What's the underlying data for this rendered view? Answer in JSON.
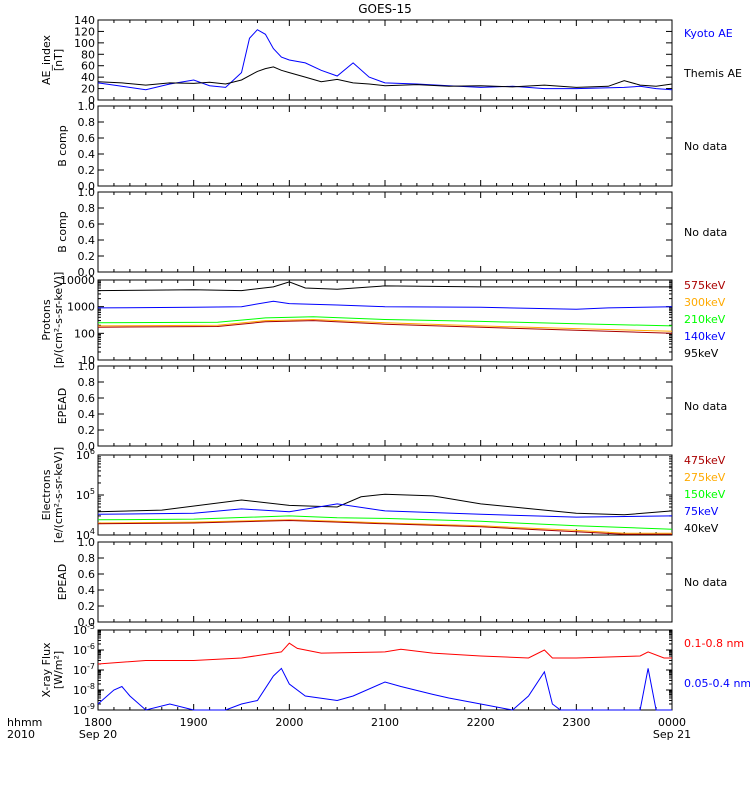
{
  "title": "GOES-15",
  "time_axis": {
    "corner_label_top": "hhmm",
    "corner_label_bottom": "2010",
    "tick_labels": [
      "1800",
      "1900",
      "2000",
      "2100",
      "2200",
      "2300",
      "0000"
    ],
    "date_labels": [
      {
        "at": "1800",
        "text": "Sep 20"
      },
      {
        "at": "0000",
        "text": "Sep 21"
      }
    ]
  },
  "colors": {
    "black": "#000000",
    "blue": "#0000ff",
    "red": "#ff0000",
    "orange": "#ffaa00",
    "green": "#00ff00",
    "darkred": "#aa0000"
  },
  "chart_data": [
    {
      "id": "ae",
      "type": "line",
      "ylabel": "AE_index\n[nT]",
      "yscale": "linear",
      "ylim": [
        0,
        140
      ],
      "yticks": [
        0,
        20,
        40,
        60,
        80,
        100,
        120,
        140
      ],
      "legend": [
        {
          "text": "Kyoto AE",
          "color": "#0000ff"
        },
        {
          "text": "Themis AE",
          "color": "#000000"
        }
      ],
      "series": [
        {
          "name": "Kyoto AE",
          "color": "#0000ff",
          "x": [
            "1800",
            "1815",
            "1830",
            "1845",
            "1900",
            "1910",
            "1920",
            "1930",
            "1935",
            "1940",
            "1945",
            "1950",
            "1955",
            "2000",
            "2010",
            "2020",
            "2030",
            "2040",
            "2050",
            "2100",
            "2120",
            "2140",
            "2200",
            "2220",
            "2240",
            "2300",
            "2330",
            "2340",
            "2350",
            "2400"
          ],
          "values": [
            30,
            24,
            18,
            28,
            35,
            25,
            22,
            48,
            108,
            123,
            115,
            90,
            75,
            70,
            65,
            52,
            42,
            65,
            40,
            30,
            28,
            25,
            22,
            24,
            20,
            20,
            22,
            24,
            20,
            18
          ]
        },
        {
          "name": "Themis AE",
          "color": "#000000",
          "x": [
            "1800",
            "1815",
            "1830",
            "1845",
            "1900",
            "1910",
            "1920",
            "1930",
            "1940",
            "1945",
            "1950",
            "1955",
            "2000",
            "2010",
            "2020",
            "2030",
            "2040",
            "2050",
            "2100",
            "2120",
            "2140",
            "2200",
            "2220",
            "2240",
            "2300",
            "2320",
            "2330",
            "2340",
            "2350",
            "2400"
          ],
          "values": [
            32,
            30,
            26,
            30,
            29,
            31,
            28,
            35,
            50,
            55,
            58,
            52,
            48,
            40,
            32,
            36,
            30,
            28,
            25,
            27,
            24,
            25,
            23,
            26,
            22,
            24,
            34,
            26,
            24,
            28
          ]
        }
      ]
    },
    {
      "id": "bcomp1",
      "type": "line",
      "ylabel": "B comp",
      "yscale": "linear",
      "ylim": [
        0,
        1
      ],
      "yticks": [
        0.0,
        0.2,
        0.4,
        0.6,
        0.8,
        1.0
      ],
      "tick_format": "1dp",
      "legend": [
        {
          "text": "No data",
          "color": "#000000"
        }
      ],
      "series": []
    },
    {
      "id": "bcomp2",
      "type": "line",
      "ylabel": "B comp",
      "yscale": "linear",
      "ylim": [
        0,
        1
      ],
      "yticks": [
        0.0,
        0.2,
        0.4,
        0.6,
        0.8,
        1.0
      ],
      "tick_format": "1dp",
      "legend": [
        {
          "text": "No data",
          "color": "#000000"
        }
      ],
      "series": []
    },
    {
      "id": "protons",
      "type": "line",
      "ylabel": "Protons\n[p/(cm²-s-sr-keV)]",
      "yscale": "log",
      "ylim": [
        10,
        10000
      ],
      "yticks": [
        10,
        100,
        1000,
        10000
      ],
      "tick_format": "plain",
      "legend": [
        {
          "text": "575keV",
          "color": "#aa0000"
        },
        {
          "text": "300keV",
          "color": "#ffaa00"
        },
        {
          "text": "210keV",
          "color": "#00ff00"
        },
        {
          "text": "140keV",
          "color": "#0000ff"
        },
        {
          "text": "95keV",
          "color": "#000000"
        }
      ],
      "series": [
        {
          "name": "95keV",
          "color": "#000000",
          "x": [
            "1800",
            "1900",
            "1930",
            "1950",
            "2000",
            "2010",
            "2030",
            "2100",
            "2200",
            "2300",
            "2400"
          ],
          "values": [
            4000,
            4300,
            4000,
            5500,
            8500,
            5000,
            4500,
            6000,
            5500,
            5500,
            5500
          ]
        },
        {
          "name": "140keV",
          "color": "#0000ff",
          "x": [
            "1800",
            "1900",
            "1930",
            "1950",
            "2000",
            "2030",
            "2100",
            "2200",
            "2300",
            "2320",
            "2400"
          ],
          "values": [
            900,
            950,
            1000,
            1600,
            1300,
            1150,
            1000,
            950,
            800,
            900,
            1000
          ]
        },
        {
          "name": "210keV",
          "color": "#00ff00",
          "x": [
            "1800",
            "1915",
            "1945",
            "2015",
            "2100",
            "2200",
            "2300",
            "2400"
          ],
          "values": [
            250,
            260,
            380,
            420,
            330,
            280,
            230,
            190
          ]
        },
        {
          "name": "300keV",
          "color": "#ffaa00",
          "x": [
            "1800",
            "1915",
            "1945",
            "2015",
            "2100",
            "2200",
            "2300",
            "2400"
          ],
          "values": [
            190,
            200,
            300,
            330,
            250,
            190,
            150,
            120
          ]
        },
        {
          "name": "575keV",
          "color": "#aa0000",
          "x": [
            "1800",
            "1915",
            "1945",
            "2015",
            "2100",
            "2200",
            "2300",
            "2400"
          ],
          "values": [
            170,
            180,
            270,
            300,
            220,
            170,
            130,
            100
          ]
        }
      ]
    },
    {
      "id": "epead1",
      "type": "line",
      "ylabel": "EPEAD",
      "yscale": "linear",
      "ylim": [
        0,
        1
      ],
      "yticks": [
        0.0,
        0.2,
        0.4,
        0.6,
        0.8,
        1.0
      ],
      "tick_format": "1dp",
      "legend": [
        {
          "text": "No data",
          "color": "#000000"
        }
      ],
      "series": []
    },
    {
      "id": "electrons",
      "type": "line",
      "ylabel": "Electrons\n[e/(cm²-s-sr-keV)]",
      "yscale": "log",
      "ylim": [
        10000,
        1000000
      ],
      "yticks": [
        10000,
        100000,
        1000000
      ],
      "tick_format": "pow10",
      "legend": [
        {
          "text": "475keV",
          "color": "#aa0000"
        },
        {
          "text": "275keV",
          "color": "#ffaa00"
        },
        {
          "text": "150keV",
          "color": "#00ff00"
        },
        {
          "text": "75keV",
          "color": "#0000ff"
        },
        {
          "text": "40keV",
          "color": "#000000"
        }
      ],
      "series": [
        {
          "name": "40keV",
          "color": "#000000",
          "x": [
            "1800",
            "1840",
            "1930",
            "2000",
            "2030",
            "2045",
            "2100",
            "2130",
            "2200",
            "2300",
            "2330",
            "2400"
          ],
          "values": [
            38000,
            42000,
            75000,
            55000,
            50000,
            90000,
            105000,
            95000,
            60000,
            35000,
            32000,
            40000
          ]
        },
        {
          "name": "75keV",
          "color": "#0000ff",
          "x": [
            "1800",
            "1900",
            "1930",
            "2000",
            "2030",
            "2100",
            "2200",
            "2300",
            "2400"
          ],
          "values": [
            33000,
            35000,
            45000,
            38000,
            60000,
            40000,
            33000,
            28000,
            30000
          ]
        },
        {
          "name": "150keV",
          "color": "#00ff00",
          "x": [
            "1800",
            "1900",
            "2000",
            "2030",
            "2100",
            "2200",
            "2300",
            "2400"
          ],
          "values": [
            24000,
            25000,
            30000,
            27000,
            26000,
            22000,
            17000,
            14000
          ]
        },
        {
          "name": "275keV",
          "color": "#ffaa00",
          "x": [
            "1800",
            "1900",
            "2000",
            "2030",
            "2100",
            "2200",
            "2300",
            "2330",
            "2400"
          ],
          "values": [
            20000,
            21000,
            24000,
            22000,
            20000,
            17000,
            13000,
            11000,
            11000
          ]
        },
        {
          "name": "475keV",
          "color": "#aa0000",
          "x": [
            "1800",
            "1900",
            "2000",
            "2030",
            "2100",
            "2200",
            "2300",
            "2330",
            "2400"
          ],
          "values": [
            19000,
            20000,
            23000,
            21000,
            19000,
            16000,
            12000,
            10500,
            10500
          ]
        }
      ]
    },
    {
      "id": "epead2",
      "type": "line",
      "ylabel": "EPEAD",
      "yscale": "linear",
      "ylim": [
        0,
        1
      ],
      "yticks": [
        0.0,
        0.2,
        0.4,
        0.6,
        0.8,
        1.0
      ],
      "tick_format": "1dp",
      "legend": [
        {
          "text": "No data",
          "color": "#000000"
        }
      ],
      "series": []
    },
    {
      "id": "xray",
      "type": "line",
      "ylabel": "X-ray Flux\n[W/m²]",
      "yscale": "log",
      "ylim": [
        1e-09,
        1e-05
      ],
      "yticks": [
        1e-09,
        1e-08,
        1e-07,
        1e-06,
        1e-05
      ],
      "tick_format": "pow10",
      "legend": [
        {
          "text": "0.1-0.8 nm",
          "color": "#ff0000"
        },
        {
          "text": "0.05-0.4 nm",
          "color": "#0000ff"
        }
      ],
      "series": [
        {
          "name": "0.1-0.8 nm",
          "color": "#ff0000",
          "x": [
            "1800",
            "1830",
            "1900",
            "1930",
            "1955",
            "2000",
            "2005",
            "2020",
            "2100",
            "2110",
            "2130",
            "2200",
            "2230",
            "2240",
            "2245",
            "2300",
            "2340",
            "2345",
            "2355",
            "2400"
          ],
          "values": [
            2e-07,
            3e-07,
            3e-07,
            4e-07,
            8e-07,
            2.2e-06,
            1.2e-06,
            7e-07,
            8e-07,
            1.1e-06,
            7e-07,
            5e-07,
            4e-07,
            1e-06,
            4e-07,
            4e-07,
            5e-07,
            8e-07,
            4e-07,
            4e-07
          ]
        },
        {
          "name": "0.05-0.4 nm",
          "color": "#0000ff",
          "x": [
            "1800",
            "1810",
            "1815",
            "1820",
            "1830",
            "1845",
            "1900",
            "1920",
            "1930",
            "1940",
            "1950",
            "1955",
            "2000",
            "2010",
            "2030",
            "2040",
            "2100",
            "2110",
            "2130",
            "2140",
            "2200",
            "2220",
            "2230",
            "2240",
            "2245",
            "2250",
            "2300",
            "2320",
            "2330",
            "2340",
            "2345",
            "2350",
            "2400"
          ],
          "values": [
            2e-09,
            1e-08,
            1.5e-08,
            5e-09,
            1e-09,
            2e-09,
            1e-09,
            1e-09,
            2e-09,
            3e-09,
            5e-08,
            1.2e-07,
            2e-08,
            5e-09,
            3e-09,
            5e-09,
            2.5e-08,
            1.5e-08,
            6e-09,
            4e-09,
            2e-09,
            1e-09,
            5e-09,
            8e-08,
            2e-09,
            1e-09,
            1e-09,
            1e-09,
            1e-09,
            1e-09,
            1.2e-07,
            1e-09,
            1e-09
          ]
        }
      ]
    }
  ]
}
